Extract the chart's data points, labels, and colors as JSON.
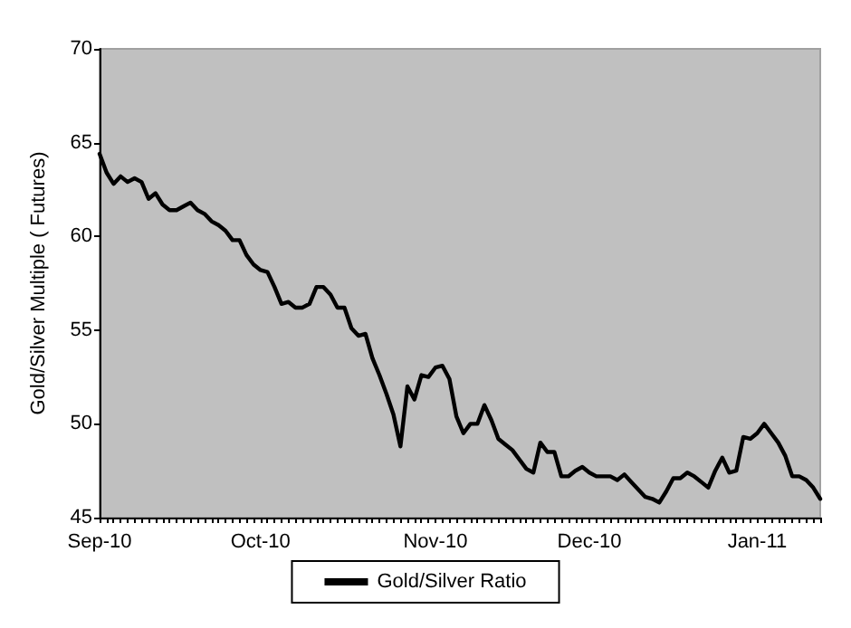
{
  "chart_data": {
    "type": "line",
    "ylabel": "Gold/Silver Multiple ( Futures)",
    "categories": [
      "Sep-10",
      null,
      null,
      null,
      null,
      null,
      null,
      null,
      null,
      null,
      null,
      null,
      null,
      null,
      null,
      null,
      null,
      null,
      null,
      null,
      null,
      null,
      null,
      "Oct-10",
      null,
      null,
      null,
      null,
      null,
      null,
      null,
      null,
      null,
      null,
      null,
      null,
      null,
      null,
      null,
      null,
      null,
      null,
      null,
      null,
      null,
      null,
      null,
      null,
      "Nov-10",
      null,
      null,
      null,
      null,
      null,
      null,
      null,
      null,
      null,
      null,
      null,
      null,
      null,
      null,
      null,
      null,
      null,
      null,
      null,
      null,
      null,
      "Dec-10",
      null,
      null,
      null,
      null,
      null,
      null,
      null,
      null,
      null,
      null,
      null,
      null,
      null,
      null,
      null,
      null,
      null,
      null,
      null,
      null,
      null,
      null,
      null,
      "Jan-11",
      null,
      null,
      null,
      null,
      null,
      null,
      null,
      null,
      null
    ],
    "series": [
      {
        "name": "Gold/Silver Ratio",
        "color": "#000000",
        "values": [
          64.4,
          63.4,
          62.8,
          63.2,
          62.9,
          63.1,
          62.9,
          62.0,
          62.3,
          61.7,
          61.4,
          61.4,
          61.6,
          61.8,
          61.4,
          61.2,
          60.8,
          60.6,
          60.3,
          59.8,
          59.8,
          59.0,
          58.5,
          58.2,
          58.1,
          57.3,
          56.4,
          56.5,
          56.2,
          56.2,
          56.4,
          57.3,
          57.3,
          56.9,
          56.2,
          56.2,
          55.1,
          54.7,
          54.8,
          53.5,
          52.6,
          51.6,
          50.5,
          48.8,
          52.0,
          51.3,
          52.6,
          52.5,
          53.0,
          53.1,
          52.4,
          50.4,
          49.5,
          50.0,
          50.0,
          51.0,
          50.2,
          49.2,
          48.9,
          48.6,
          48.1,
          47.6,
          47.4,
          49.0,
          48.5,
          48.5,
          47.2,
          47.2,
          47.5,
          47.7,
          47.4,
          47.2,
          47.2,
          47.2,
          47.0,
          47.3,
          46.9,
          46.5,
          46.1,
          46.0,
          45.8,
          46.4,
          47.1,
          47.1,
          47.4,
          47.2,
          46.9,
          46.6,
          47.5,
          48.2,
          47.4,
          47.5,
          49.3,
          49.2,
          49.5,
          50.0,
          49.5,
          49.0,
          48.3,
          47.2,
          47.2,
          47.0,
          46.6,
          46.0
        ]
      }
    ],
    "ylim": [
      45,
      70
    ],
    "yticks": [
      45,
      50,
      55,
      60,
      65,
      70
    ],
    "grid": false,
    "legend": "bottom",
    "marker": "none",
    "line_style": "solid"
  }
}
